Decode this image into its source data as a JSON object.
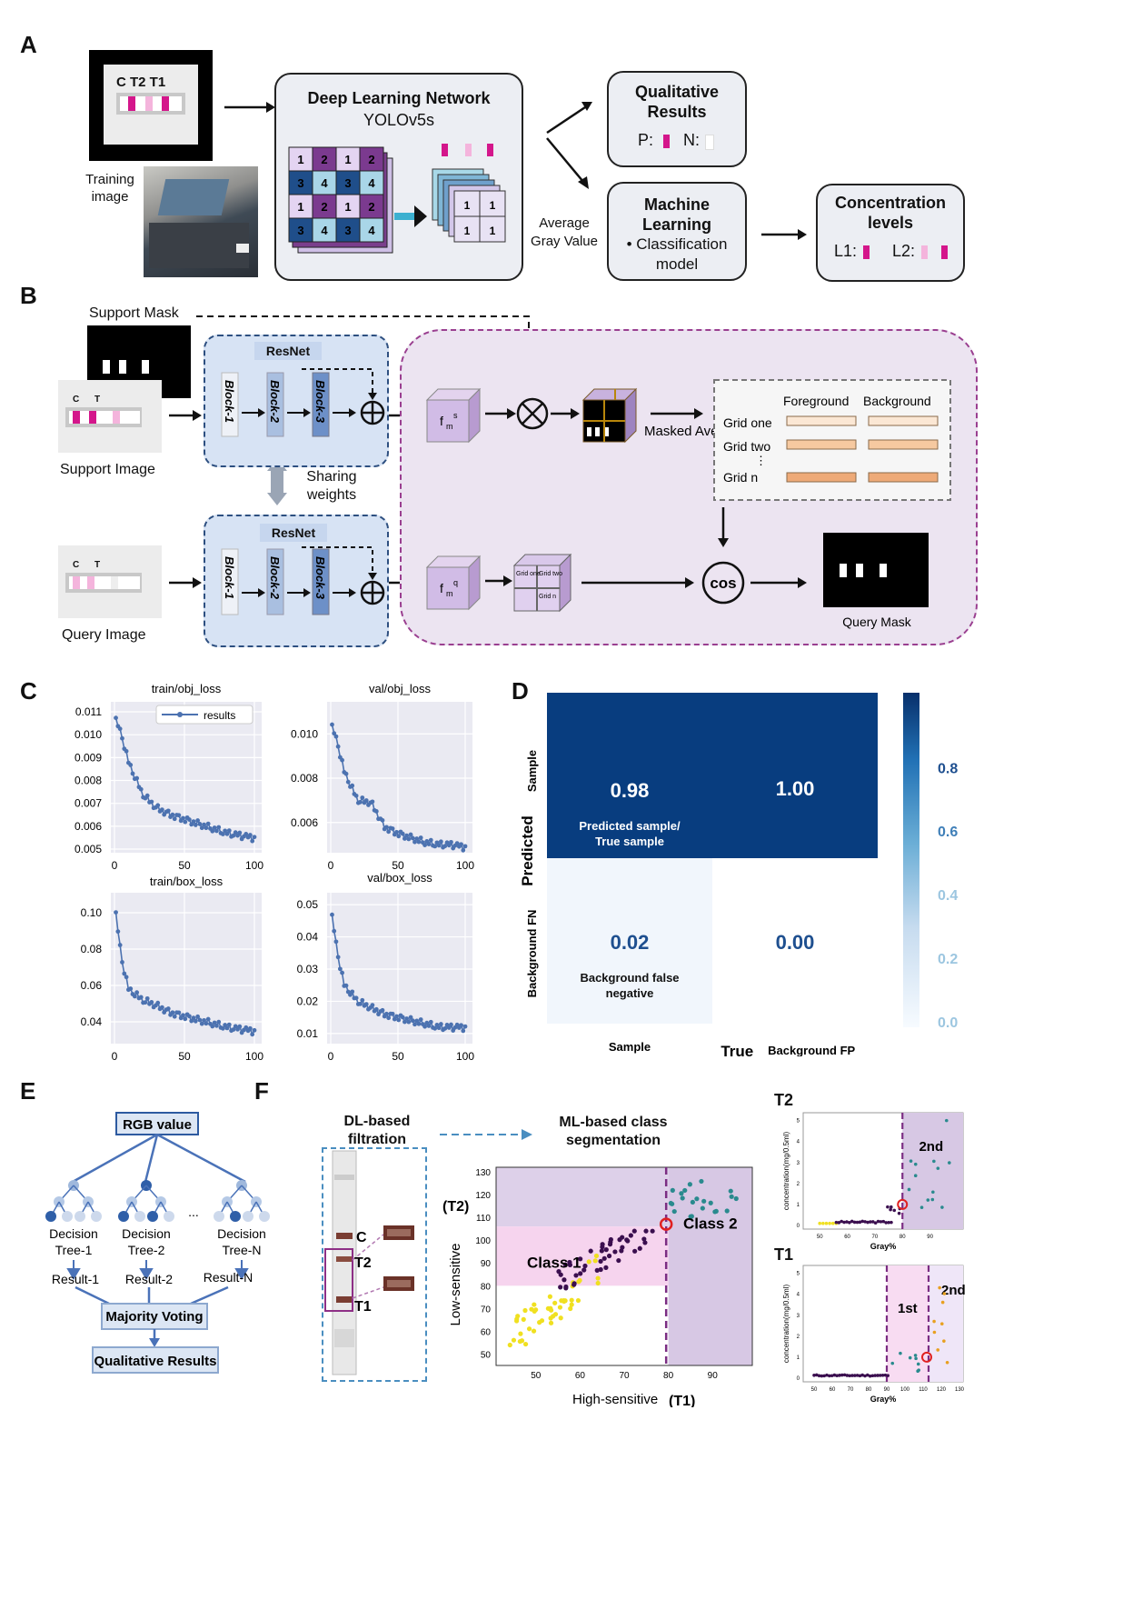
{
  "panels": {
    "a": "A",
    "b": "B",
    "c": "C",
    "d": "D",
    "e": "E",
    "f": "F"
  },
  "panelA": {
    "strip_labels": "C T2 T1",
    "training_image": "Training image",
    "dl_title": "Deep Learning Network",
    "dl_sub": "YOLOv5s",
    "avg_gray": "Average Gray Value",
    "qual_title": "Qualitative Results",
    "qual_p": "P:",
    "qual_n": "N:",
    "ml_title": "Machine Learning",
    "ml_sub": "• Classification model",
    "conc_title": "Concentration levels",
    "conc_l1": "L1:",
    "conc_l2": "L2:",
    "grid_numbers": [
      "1",
      "2",
      "1",
      "2",
      "3",
      "4",
      "3",
      "4",
      "1",
      "2",
      "1",
      "2",
      "3",
      "4",
      "3",
      "4"
    ],
    "out_numbers": [
      "1",
      "1",
      "1",
      "1"
    ]
  },
  "panelB": {
    "support_mask": "Support Mask",
    "support_image": "Support Image",
    "query_image": "Query Image",
    "query_mask": "Query Mask",
    "strip_c": "C",
    "strip_t": "T",
    "resnet": "ResNet",
    "blocks": [
      "Block-1",
      "Block-2",
      "Block-3"
    ],
    "sharing": "Sharing weights",
    "fms": "f",
    "fm_sub_s": "m",
    "fm_sup_s": "s",
    "fm_sup_q": "q",
    "map_label": "Masked Average Pooling",
    "foreground": "Foreground",
    "background": "Background",
    "grid_one": "Grid one",
    "grid_two": "Grid two",
    "grid_dots": "⋮",
    "grid_n": "Grid n",
    "cos": "cos",
    "mini_grid": [
      "Grid one",
      "Grid two",
      "Grid n"
    ]
  },
  "panelC": {
    "plots": [
      {
        "title": "train/obj_loss",
        "yticks": [
          "0.011",
          "0.010",
          "0.009",
          "0.008",
          "0.007",
          "0.006",
          "0.005"
        ],
        "xticks": [
          "0",
          "50",
          "100"
        ],
        "legend": "results"
      },
      {
        "title": "val/obj_loss",
        "yticks": [
          "0.010",
          "0.008",
          "0.006"
        ],
        "xticks": [
          "0",
          "50",
          "100"
        ]
      },
      {
        "title": "train/box_loss",
        "yticks": [
          "0.10",
          "0.08",
          "0.06",
          "0.04"
        ],
        "xticks": [
          "0",
          "50",
          "100"
        ]
      },
      {
        "title": "val/box_loss",
        "yticks": [
          "0.05",
          "0.04",
          "0.03",
          "0.02",
          "0.01"
        ],
        "xticks": [
          "0",
          "50",
          "100"
        ]
      }
    ]
  },
  "panelD": {
    "ylabel": "Predicted",
    "xlabel": "True",
    "row_labels": [
      "Sample",
      "Background FN"
    ],
    "col_labels": [
      "Sample",
      "Background FP"
    ],
    "cells": [
      [
        "0.98",
        "1.00"
      ],
      [
        "0.02",
        "0.00"
      ]
    ],
    "cell_notes": [
      "Predicted sample/ True sample",
      "Background false negative"
    ],
    "cbar_ticks": [
      "0.8",
      "0.6",
      "0.4",
      "0.2",
      "0.0"
    ],
    "colors": {
      "dark": "#083d7f",
      "light": "#f1f6fc"
    }
  },
  "panelE": {
    "rgb": "RGB value",
    "trees": [
      "Decision Tree-1",
      "Decision Tree-2",
      "Decision Tree-N"
    ],
    "results": [
      "Result-1",
      "Result-2",
      "Result-N"
    ],
    "ellipsis": "...",
    "voting": "Majority Voting",
    "final": "Qualitative Results"
  },
  "panelF": {
    "dl": "DL-based filtration",
    "ml": "ML-based class segmentation",
    "strip_labels": [
      "C",
      "T2",
      "T1"
    ],
    "scatter": {
      "ylabel": "Low-sensitive",
      "ylabel_t": "(T2)",
      "xlabel": "High-sensitive",
      "xlabel_t": "(T1)",
      "xticks": [
        "50",
        "60",
        "70",
        "80",
        "90"
      ],
      "yticks": [
        "130",
        "120",
        "110",
        "100",
        "90",
        "80",
        "70",
        "60",
        "50"
      ],
      "class1": "Class 1",
      "class2": "Class 2"
    },
    "t2": {
      "title": "T2",
      "region": "2nd",
      "ylabel": "concentration(mg/0.5ml)",
      "xlabel": "Gray%",
      "xticks": [
        "50",
        "60",
        "70",
        "80",
        "90"
      ],
      "yticks": [
        "5",
        "4",
        "3",
        "2",
        "1",
        "0"
      ]
    },
    "t1": {
      "title": "T1",
      "region1": "1st",
      "region2": "2nd",
      "ylabel": "concentration(mg/0.5ml)",
      "xlabel": "Gray%",
      "xticks": [
        "50",
        "60",
        "70",
        "80",
        "90",
        "100",
        "110",
        "120",
        "130"
      ],
      "yticks": [
        "5",
        "4",
        "3",
        "2",
        "1",
        "0"
      ]
    }
  },
  "chart_data": [
    {
      "type": "line",
      "title": "train/obj_loss",
      "x": [
        0,
        5,
        10,
        20,
        30,
        40,
        50,
        60,
        70,
        80,
        90,
        100
      ],
      "series": [
        {
          "name": "results",
          "values": [
            0.0108,
            0.01,
            0.0088,
            0.0074,
            0.0068,
            0.0065,
            0.0063,
            0.0061,
            0.0059,
            0.0057,
            0.0056,
            0.0055
          ]
        }
      ],
      "xlim": [
        0,
        100
      ]
    },
    {
      "type": "line",
      "title": "val/obj_loss",
      "x": [
        0,
        5,
        10,
        20,
        30,
        40,
        50,
        60,
        70,
        80,
        90,
        100
      ],
      "series": [
        {
          "values": [
            0.0105,
            0.0096,
            0.0083,
            0.007,
            0.0069,
            0.0058,
            0.0055,
            0.0053,
            0.0051,
            0.005,
            0.005,
            0.0049
          ]
        }
      ],
      "xlim": [
        0,
        100
      ]
    },
    {
      "type": "line",
      "title": "train/box_loss",
      "x": [
        0,
        5,
        10,
        20,
        30,
        40,
        50,
        60,
        70,
        80,
        90,
        100
      ],
      "series": [
        {
          "values": [
            0.105,
            0.075,
            0.058,
            0.052,
            0.049,
            0.045,
            0.043,
            0.041,
            0.039,
            0.037,
            0.036,
            0.035
          ]
        }
      ],
      "xlim": [
        0,
        100
      ]
    },
    {
      "type": "line",
      "title": "val/box_loss",
      "x": [
        0,
        5,
        10,
        20,
        30,
        40,
        50,
        60,
        70,
        80,
        90,
        100
      ],
      "series": [
        {
          "values": [
            0.049,
            0.035,
            0.025,
            0.02,
            0.018,
            0.016,
            0.015,
            0.014,
            0.013,
            0.012,
            0.012,
            0.012
          ]
        }
      ],
      "xlim": [
        0,
        100
      ]
    },
    {
      "type": "heatmap",
      "rows": [
        "Sample",
        "Background FN"
      ],
      "cols": [
        "Sample",
        "Background FP"
      ],
      "values": [
        [
          0.98,
          1.0
        ],
        [
          0.02,
          0.0
        ]
      ],
      "ylabel": "Predicted",
      "xlabel": "True",
      "clim": [
        0,
        1
      ]
    }
  ]
}
